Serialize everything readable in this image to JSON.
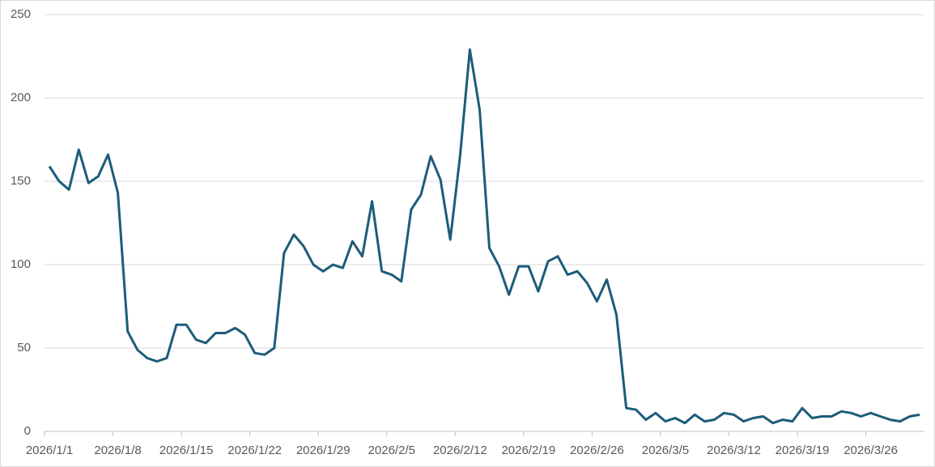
{
  "chart_data": {
    "type": "line",
    "categories": [
      "2026/1/1",
      null,
      null,
      null,
      null,
      null,
      null,
      "2026/1/8",
      null,
      null,
      null,
      null,
      null,
      null,
      "2026/1/15",
      null,
      null,
      null,
      null,
      null,
      null,
      "2026/1/22",
      null,
      null,
      null,
      null,
      null,
      null,
      "2026/1/29",
      null,
      null,
      null,
      null,
      null,
      null,
      "2026/2/5",
      null,
      null,
      null,
      null,
      null,
      null,
      "2026/2/12",
      null,
      null,
      null,
      null,
      null,
      null,
      "2026/2/19",
      null,
      null,
      null,
      null,
      null,
      null,
      "2026/2/26",
      null,
      null,
      null,
      null,
      null,
      null,
      "2026/3/5",
      null,
      null,
      null,
      null,
      null,
      null,
      "2026/3/12",
      null,
      null,
      null,
      null,
      null,
      null,
      "2026/3/19",
      null,
      null,
      null,
      null,
      null,
      null,
      "2026/3/26",
      null,
      null,
      null,
      null,
      null
    ],
    "values": [
      159,
      150,
      145,
      169,
      149,
      153,
      166,
      143,
      60,
      49,
      44,
      42,
      44,
      64,
      64,
      55,
      53,
      59,
      59,
      62,
      58,
      47,
      46,
      50,
      107,
      118,
      111,
      100,
      96,
      100,
      98,
      114,
      105,
      138,
      96,
      94,
      90,
      133,
      142,
      165,
      151,
      115,
      165,
      229,
      193,
      110,
      99,
      82,
      99,
      99,
      84,
      102,
      105,
      94,
      96,
      89,
      78,
      91,
      70,
      14,
      13,
      7,
      11,
      6,
      8,
      5,
      10,
      6,
      7,
      11,
      10,
      6,
      8,
      9,
      5,
      7,
      6,
      14,
      8,
      9,
      9,
      12,
      11,
      9,
      11,
      9,
      7,
      6,
      9,
      10
    ],
    "color": "#1c5c7a",
    "ylim": [
      0,
      250
    ],
    "yticks": [
      0,
      50,
      100,
      150,
      200,
      250
    ],
    "grid": true
  }
}
